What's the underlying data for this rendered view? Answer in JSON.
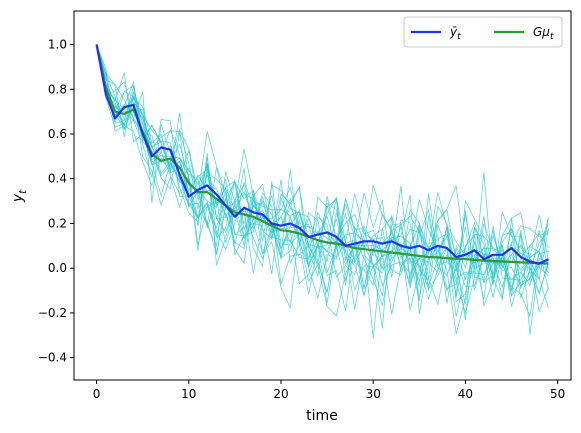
{
  "chart_data": {
    "type": "line",
    "xlabel": "time",
    "ylabel": "y_t",
    "xlim": [
      -2.45,
      51.45
    ],
    "ylim": [
      -0.5,
      1.15
    ],
    "xticks": [
      0,
      10,
      20,
      30,
      40,
      50
    ],
    "yticks": [
      -0.4,
      -0.2,
      0.0,
      0.2,
      0.4,
      0.6,
      0.8,
      1.0
    ],
    "ytick_labels": [
      "−0.4",
      "−0.2",
      "0.0",
      "0.2",
      "0.4",
      "0.6",
      "0.8",
      "1.0"
    ],
    "legend_position": "top-right",
    "legend": [
      {
        "label": "ȳ",
        "sub": "t",
        "color": "#2433e8"
      },
      {
        "label": "Gμ",
        "sub": "t",
        "color": "#2e9a3a"
      }
    ],
    "series": [
      {
        "name": "ȳ_t",
        "color": "#2433e8",
        "x": [
          0,
          1,
          2,
          3,
          4,
          5,
          6,
          7,
          8,
          9,
          10,
          11,
          12,
          13,
          14,
          15,
          16,
          17,
          18,
          19,
          20,
          21,
          22,
          23,
          24,
          25,
          26,
          27,
          28,
          29,
          30,
          31,
          32,
          33,
          34,
          35,
          36,
          37,
          38,
          39,
          40,
          41,
          42,
          43,
          44,
          45,
          46,
          47,
          48,
          49
        ],
        "values": [
          1.0,
          0.78,
          0.67,
          0.72,
          0.73,
          0.6,
          0.5,
          0.54,
          0.53,
          0.42,
          0.32,
          0.35,
          0.37,
          0.33,
          0.28,
          0.23,
          0.27,
          0.25,
          0.24,
          0.2,
          0.19,
          0.2,
          0.18,
          0.14,
          0.15,
          0.16,
          0.14,
          0.1,
          0.11,
          0.12,
          0.12,
          0.11,
          0.12,
          0.1,
          0.09,
          0.1,
          0.08,
          0.1,
          0.09,
          0.05,
          0.06,
          0.08,
          0.04,
          0.06,
          0.06,
          0.09,
          0.05,
          0.03,
          0.02,
          0.04
        ]
      },
      {
        "name": "Gμ_t",
        "color": "#2e9a3a",
        "x": [
          0,
          1,
          2,
          3,
          4,
          5,
          6,
          7,
          8,
          9,
          10,
          11,
          12,
          13,
          14,
          15,
          16,
          17,
          18,
          19,
          20,
          21,
          22,
          23,
          24,
          25,
          26,
          27,
          28,
          29,
          30,
          31,
          32,
          33,
          34,
          35,
          36,
          37,
          38,
          39,
          40,
          41,
          42,
          43,
          44,
          45,
          46,
          47,
          48,
          49
        ],
        "values": [
          1.0,
          0.81,
          0.7,
          0.69,
          0.71,
          0.61,
          0.51,
          0.48,
          0.49,
          0.45,
          0.38,
          0.34,
          0.34,
          0.31,
          0.28,
          0.25,
          0.24,
          0.23,
          0.21,
          0.19,
          0.17,
          0.165,
          0.155,
          0.14,
          0.125,
          0.115,
          0.11,
          0.1,
          0.09,
          0.085,
          0.08,
          0.075,
          0.07,
          0.065,
          0.06,
          0.055,
          0.05,
          0.048,
          0.045,
          0.042,
          0.04,
          0.037,
          0.034,
          0.032,
          0.03,
          0.028,
          0.026,
          0.024,
          0.022,
          0.02
        ]
      }
    ],
    "sample_paths": {
      "color": "#2ec8cc",
      "count": 20
    }
  }
}
